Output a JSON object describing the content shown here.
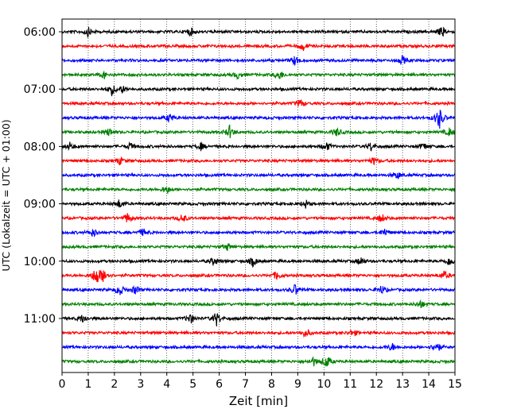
{
  "chart_data": {
    "type": "line",
    "title": "",
    "xlabel": "Zeit  [min]",
    "ylabel": "UTC (Lokalzeit = UTC + 01:00)",
    "xlim": [
      0,
      15
    ],
    "xticks": [
      "0",
      "1",
      "2",
      "3",
      "4",
      "5",
      "6",
      "7",
      "8",
      "9",
      "10",
      "11",
      "12",
      "13",
      "14",
      "15"
    ],
    "yticks": [
      "06:00",
      "07:00",
      "08:00",
      "09:00",
      "10:00",
      "11:00"
    ],
    "grid": "vertical dotted lines at each minute",
    "trace_interval_minutes": 15,
    "traces": [
      {
        "start": "06:00",
        "color": "#000000",
        "events": [
          [
            1.0,
            0.6
          ],
          [
            4.9,
            0.6
          ],
          [
            14.5,
            0.7
          ]
        ]
      },
      {
        "start": "06:15",
        "color": "#ff0000",
        "events": [
          [
            9.2,
            0.6
          ]
        ]
      },
      {
        "start": "06:30",
        "color": "#0000ff",
        "events": [
          [
            8.9,
            0.7
          ],
          [
            13.0,
            0.6
          ]
        ]
      },
      {
        "start": "06:45",
        "color": "#008000",
        "events": [
          [
            1.6,
            0.5
          ],
          [
            6.7,
            0.5
          ],
          [
            8.3,
            0.7
          ]
        ]
      },
      {
        "start": "07:00",
        "color": "#000000",
        "events": [
          [
            1.9,
            0.8
          ],
          [
            2.3,
            0.5
          ]
        ]
      },
      {
        "start": "07:15",
        "color": "#ff0000",
        "events": [
          [
            9.1,
            0.6
          ]
        ]
      },
      {
        "start": "07:30",
        "color": "#0000ff",
        "events": [
          [
            4.1,
            0.6
          ],
          [
            14.4,
            1.6
          ]
        ]
      },
      {
        "start": "07:45",
        "color": "#008000",
        "events": [
          [
            1.8,
            0.6
          ],
          [
            6.4,
            0.9
          ],
          [
            10.5,
            0.6
          ],
          [
            14.8,
            0.6
          ]
        ]
      },
      {
        "start": "08:00",
        "color": "#000000",
        "events": [
          [
            0.3,
            0.5
          ],
          [
            2.6,
            0.5
          ],
          [
            5.3,
            0.5
          ],
          [
            10.1,
            0.6
          ],
          [
            11.8,
            0.6
          ],
          [
            13.8,
            0.5
          ]
        ]
      },
      {
        "start": "08:15",
        "color": "#ff0000",
        "events": [
          [
            2.2,
            0.5
          ],
          [
            11.9,
            0.5
          ]
        ]
      },
      {
        "start": "08:30",
        "color": "#0000ff",
        "events": [
          [
            12.8,
            0.5
          ]
        ]
      },
      {
        "start": "08:45",
        "color": "#008000",
        "events": [
          [
            4.0,
            0.5
          ]
        ]
      },
      {
        "start": "09:00",
        "color": "#000000",
        "events": [
          [
            2.2,
            0.6
          ],
          [
            9.3,
            0.5
          ]
        ]
      },
      {
        "start": "09:15",
        "color": "#ff0000",
        "events": [
          [
            2.5,
            0.7
          ],
          [
            4.6,
            0.6
          ],
          [
            12.2,
            0.6
          ]
        ]
      },
      {
        "start": "09:30",
        "color": "#0000ff",
        "events": [
          [
            1.2,
            0.6
          ],
          [
            3.1,
            0.5
          ],
          [
            12.3,
            0.5
          ]
        ]
      },
      {
        "start": "09:45",
        "color": "#008000",
        "events": [
          [
            6.3,
            0.5
          ]
        ]
      },
      {
        "start": "10:00",
        "color": "#000000",
        "events": [
          [
            5.8,
            0.6
          ],
          [
            7.3,
            0.7
          ],
          [
            11.4,
            0.6
          ],
          [
            14.8,
            0.7
          ]
        ]
      },
      {
        "start": "10:15",
        "color": "#ff0000",
        "events": [
          [
            1.3,
            1.4
          ],
          [
            1.6,
            0.9
          ],
          [
            8.2,
            0.6
          ],
          [
            14.6,
            0.6
          ]
        ]
      },
      {
        "start": "10:30",
        "color": "#0000ff",
        "events": [
          [
            2.2,
            0.8
          ],
          [
            2.8,
            0.6
          ],
          [
            8.9,
            0.8
          ],
          [
            12.2,
            0.6
          ]
        ]
      },
      {
        "start": "10:45",
        "color": "#008000",
        "events": [
          [
            13.7,
            0.5
          ]
        ]
      },
      {
        "start": "11:00",
        "color": "#000000",
        "events": [
          [
            0.8,
            0.6
          ],
          [
            4.9,
            0.7
          ],
          [
            5.9,
            1.0
          ]
        ]
      },
      {
        "start": "11:15",
        "color": "#ff0000",
        "events": [
          [
            9.3,
            0.6
          ],
          [
            11.1,
            0.5
          ]
        ]
      },
      {
        "start": "11:30",
        "color": "#0000ff",
        "events": [
          [
            14.3,
            0.8
          ],
          [
            12.6,
            0.5
          ]
        ]
      },
      {
        "start": "11:45",
        "color": "#008000",
        "events": [
          [
            10.1,
            1.0
          ],
          [
            9.6,
            0.6
          ]
        ]
      }
    ]
  }
}
